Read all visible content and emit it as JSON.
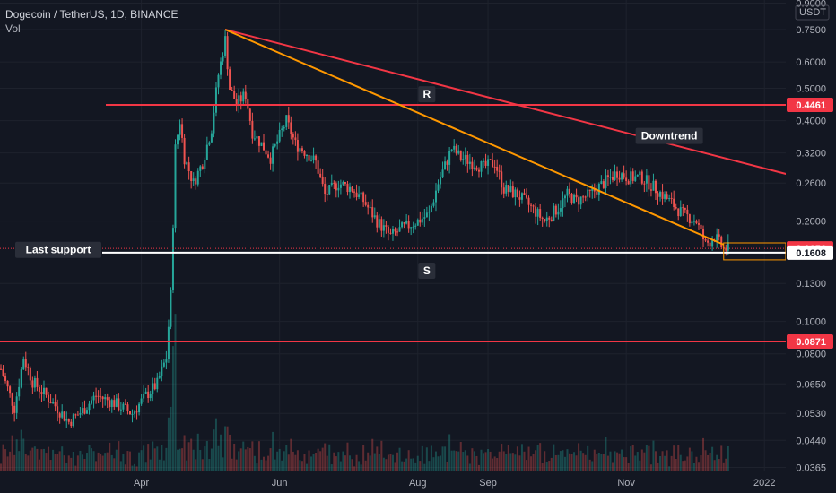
{
  "header": {
    "symbol": "Dogecoin / TetherUS, 1D, BINANCE",
    "volume": "Vol"
  },
  "currency_label": "USDT",
  "chart_data": {
    "type": "candlestick",
    "y_scale": "log",
    "ylim": [
      0.0355,
      0.92
    ],
    "y_ticks": [
      "0.9000",
      "0.7500",
      "0.6000",
      "0.5000",
      "0.4000",
      "0.3200",
      "0.2600",
      "0.2000",
      "0.1300",
      "0.1000",
      "0.0800",
      "0.0650",
      "0.0530",
      "0.0440",
      "0.0365"
    ],
    "x_ticks": [
      "Apr",
      "Jun",
      "Aug",
      "Sep",
      "Nov",
      "2022"
    ],
    "price_points": [
      [
        "2021-01-29",
        0.072
      ],
      [
        "2021-02-04",
        0.055
      ],
      [
        "2021-02-08",
        0.078
      ],
      [
        "2021-02-12",
        0.066
      ],
      [
        "2021-02-20",
        0.058
      ],
      [
        "2021-02-28",
        0.05
      ],
      [
        "2021-03-06",
        0.054
      ],
      [
        "2021-03-12",
        0.06
      ],
      [
        "2021-03-20",
        0.057
      ],
      [
        "2021-03-28",
        0.053
      ],
      [
        "2021-04-03",
        0.06
      ],
      [
        "2021-04-08",
        0.065
      ],
      [
        "2021-04-12",
        0.078
      ],
      [
        "2021-04-14",
        0.12
      ],
      [
        "2021-04-16",
        0.33
      ],
      [
        "2021-04-18",
        0.4
      ],
      [
        "2021-04-20",
        0.31
      ],
      [
        "2021-04-24",
        0.26
      ],
      [
        "2021-04-28",
        0.3
      ],
      [
        "2021-05-02",
        0.38
      ],
      [
        "2021-05-05",
        0.55
      ],
      [
        "2021-05-08",
        0.7
      ],
      [
        "2021-05-10",
        0.5
      ],
      [
        "2021-05-13",
        0.45
      ],
      [
        "2021-05-17",
        0.48
      ],
      [
        "2021-05-20",
        0.37
      ],
      [
        "2021-05-24",
        0.34
      ],
      [
        "2021-05-28",
        0.31
      ],
      [
        "2021-06-01",
        0.36
      ],
      [
        "2021-06-04",
        0.4
      ],
      [
        "2021-06-08",
        0.34
      ],
      [
        "2021-06-13",
        0.32
      ],
      [
        "2021-06-17",
        0.3
      ],
      [
        "2021-06-21",
        0.24
      ],
      [
        "2021-06-27",
        0.26
      ],
      [
        "2021-07-03",
        0.25
      ],
      [
        "2021-07-08",
        0.23
      ],
      [
        "2021-07-14",
        0.2
      ],
      [
        "2021-07-20",
        0.18
      ],
      [
        "2021-07-25",
        0.19
      ],
      [
        "2021-08-01",
        0.2
      ],
      [
        "2021-08-06",
        0.21
      ],
      [
        "2021-08-10",
        0.26
      ],
      [
        "2021-08-16",
        0.33
      ],
      [
        "2021-08-20",
        0.31
      ],
      [
        "2021-08-25",
        0.3
      ],
      [
        "2021-08-30",
        0.29
      ],
      [
        "2021-09-04",
        0.3
      ],
      [
        "2021-09-08",
        0.25
      ],
      [
        "2021-09-14",
        0.24
      ],
      [
        "2021-09-20",
        0.22
      ],
      [
        "2021-09-26",
        0.2
      ],
      [
        "2021-10-02",
        0.22
      ],
      [
        "2021-10-06",
        0.24
      ],
      [
        "2021-10-10",
        0.23
      ],
      [
        "2021-10-16",
        0.24
      ],
      [
        "2021-10-22",
        0.26
      ],
      [
        "2021-10-28",
        0.28
      ],
      [
        "2021-11-02",
        0.27
      ],
      [
        "2021-11-08",
        0.27
      ],
      [
        "2021-11-14",
        0.25
      ],
      [
        "2021-11-20",
        0.23
      ],
      [
        "2021-11-26",
        0.21
      ],
      [
        "2021-12-02",
        0.2
      ],
      [
        "2021-12-06",
        0.17
      ],
      [
        "2021-12-10",
        0.18
      ],
      [
        "2021-12-14",
        0.165
      ],
      [
        "2021-12-16",
        0.1656
      ]
    ],
    "horizontal_levels": [
      {
        "label": "0.4461",
        "value": 0.4461,
        "color": "#f23645"
      },
      {
        "label": "0.1656",
        "value": 0.1656,
        "color": "#f23645"
      },
      {
        "label": "0.1608",
        "value": 0.1608,
        "color": "#ffffff"
      },
      {
        "label": "0.0871",
        "value": 0.0871,
        "color": "#f23645"
      }
    ],
    "trend_lines": [
      {
        "color": "#f23645",
        "from": [
          "2021-05-08",
          0.75
        ],
        "to": [
          "2022-01-31",
          0.255
        ]
      },
      {
        "color": "#ff9800",
        "from": [
          "2021-05-08",
          0.75
        ],
        "to": [
          "2021-12-14",
          0.17
        ]
      }
    ],
    "annotations": [
      {
        "text": "R",
        "at": [
          "2021-08-05",
          0.48
        ]
      },
      {
        "text": "Downtrend",
        "at": [
          "2021-11-20",
          0.36
        ]
      },
      {
        "text": "Last support",
        "at": [
          "2021-01-29",
          0.164
        ]
      },
      {
        "text": "S",
        "at": [
          "2021-08-05",
          0.142
        ]
      }
    ],
    "colors": {
      "up": "#26a69a",
      "down": "#ef5350",
      "background": "#131722",
      "grid": "#1e222d"
    }
  }
}
